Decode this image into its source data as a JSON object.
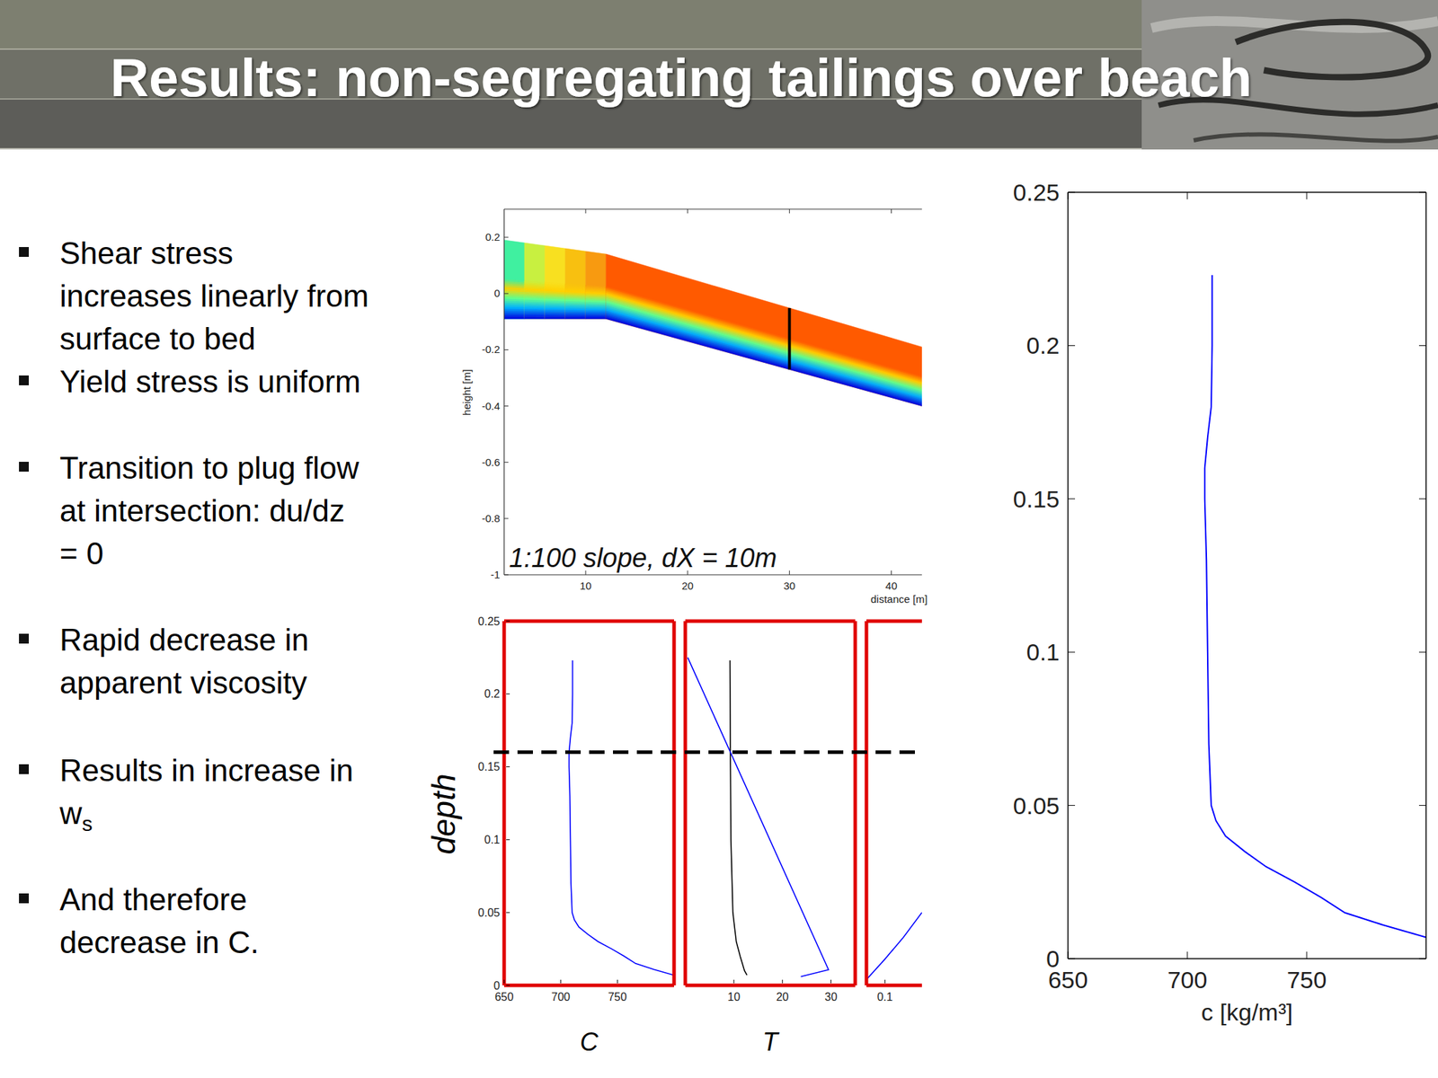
{
  "slide": {
    "title": "Results: non-segregating tailings over beach",
    "bullets": [
      [
        "Shear stress",
        "increases linearly from",
        "surface to bed"
      ],
      [
        "Yield stress is uniform"
      ],
      [
        "Transition to plug flow",
        "at intersection: du/dz",
        "= 0"
      ],
      [
        "Rapid decrease in",
        "apparent viscosity"
      ],
      [
        "Results in increase in",
        {
          "text": "w",
          "sub": "s"
        }
      ],
      [
        "And therefore",
        "decrease in C."
      ]
    ]
  },
  "chart_data": [
    {
      "type": "area",
      "xlabel": "distance [m]",
      "ylabel": "height [m]",
      "annotation": "1:100 slope, dX = 10m",
      "x": [
        2,
        4,
        6,
        8,
        10,
        12,
        43
      ],
      "surface": [
        0.19,
        0.18,
        0.17,
        0.16,
        0.15,
        0.14,
        -0.19
      ],
      "bed": [
        -0.09,
        -0.09,
        -0.09,
        -0.09,
        -0.09,
        -0.09,
        -0.4
      ],
      "colors": [
        "#40f0a0",
        "#c8f040",
        "#f8e020",
        "#f8c010",
        "#f89a10",
        "#ff5a00"
      ],
      "section_x": 30,
      "xlim": [
        2,
        43
      ],
      "ylim": [
        -1,
        0.3
      ],
      "xticks": [
        10,
        20,
        30,
        40
      ],
      "yticks": [
        0.2,
        0,
        -0.2,
        -0.4,
        -0.6,
        -0.8,
        -1
      ]
    },
    {
      "type": "line",
      "xlabel": "C",
      "ylabel": "depth",
      "color": "#0000ff",
      "x": [
        800,
        782,
        766,
        756,
        745,
        733,
        724,
        716,
        712,
        710,
        709,
        708.5,
        708,
        707.3,
        707.3,
        708.5,
        710,
        710.4,
        710.4
      ],
      "y": [
        0.007,
        0.011,
        0.015,
        0.02,
        0.025,
        0.03,
        0.035,
        0.04,
        0.045,
        0.05,
        0.07,
        0.1,
        0.13,
        0.15,
        0.16,
        0.17,
        0.18,
        0.2,
        0.223
      ],
      "xlim": [
        650,
        800
      ],
      "ylim": [
        0,
        0.25
      ],
      "xticks": [
        650,
        700,
        750
      ],
      "yticks": [
        0,
        0.05,
        0.1,
        0.15,
        0.2,
        0.25
      ]
    },
    {
      "type": "line",
      "xlabel": "T",
      "tick_labels": "x",
      "series": [
        {
          "color": "#000000",
          "x": [
            12.7,
            12.2,
            11.3,
            10.5,
            9.8,
            9.4,
            9.3,
            9.2
          ],
          "y": [
            0.007,
            0.01,
            0.02,
            0.03,
            0.05,
            0.1,
            0.15,
            0.223
          ]
        },
        {
          "color": "#0000ff",
          "x": [
            0.5,
            29.5,
            23.8
          ],
          "y": [
            0.225,
            0.0107,
            0.006
          ]
        }
      ],
      "intersection_depth": 0.16,
      "xlim": [
        0,
        35
      ],
      "ylim": [
        0,
        0.25
      ],
      "xticks": [
        10,
        20,
        30
      ]
    },
    {
      "type": "line",
      "tick_labels": "x",
      "color": "#0000ff",
      "x": [
        0.07,
        0.1,
        0.13,
        0.16
      ],
      "y": [
        0.004,
        0.018,
        0.033,
        0.05
      ],
      "xlim": [
        0.07,
        0.16
      ],
      "ylim": [
        0,
        0.25
      ],
      "xticks": [
        0.1
      ]
    },
    {
      "type": "line",
      "xlabel": "c [kg/m³]",
      "color": "#0000ff",
      "x": [
        800,
        782,
        766,
        756,
        745,
        733,
        724,
        716,
        712,
        710,
        709,
        708.5,
        708,
        707.3,
        707.3,
        708.5,
        710,
        710.4,
        710.4
      ],
      "y": [
        0.007,
        0.011,
        0.015,
        0.02,
        0.025,
        0.03,
        0.035,
        0.04,
        0.045,
        0.05,
        0.07,
        0.1,
        0.13,
        0.15,
        0.16,
        0.17,
        0.18,
        0.2,
        0.223
      ],
      "xlim": [
        650,
        800
      ],
      "ylim": [
        0,
        0.25
      ],
      "xticks": [
        650,
        700,
        750
      ],
      "yticks": [
        0,
        0.05,
        0.1,
        0.15,
        0.2,
        0.25
      ]
    }
  ]
}
